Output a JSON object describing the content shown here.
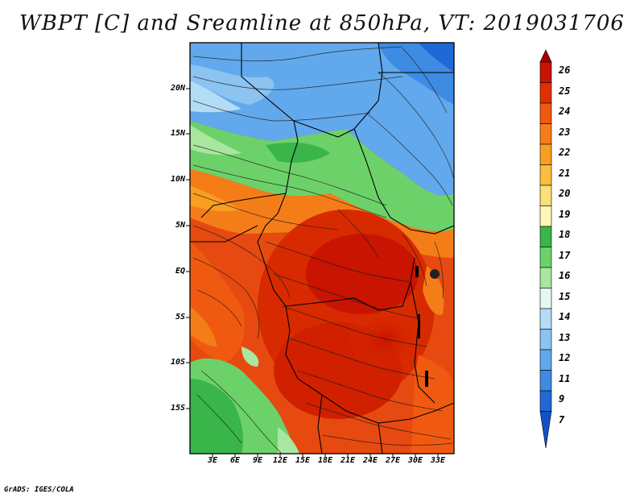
{
  "title": "WBPT [C] and Sreamline at 850hPa, VT: 2019031706",
  "credit": "GrADS: IGES/COLA",
  "lat_labels": [
    "20N",
    "15N",
    "10N",
    "5N",
    "EQ",
    "5S",
    "10S",
    "15S"
  ],
  "lon_labels": [
    "3E",
    "6E",
    "9E",
    "12E",
    "15E",
    "18E",
    "21E",
    "24E",
    "27E",
    "30E",
    "33E"
  ],
  "colorbar": {
    "labels": [
      "26",
      "25",
      "24",
      "23",
      "22",
      "21",
      "20",
      "19",
      "18",
      "17",
      "16",
      "15",
      "14",
      "13",
      "12",
      "11",
      "9",
      "7"
    ],
    "colors": [
      "#a50000",
      "#c81400",
      "#e03000",
      "#f05a10",
      "#f57d18",
      "#fa9e20",
      "#fcbe3c",
      "#fde07a",
      "#fff7b8",
      "#39b54a",
      "#6dd16a",
      "#a9e6a0",
      "#e6f7f2",
      "#b5dcf5",
      "#8cc3f0",
      "#62a8ec",
      "#3e8be3",
      "#1f68d6",
      "#1450c8"
    ]
  }
}
